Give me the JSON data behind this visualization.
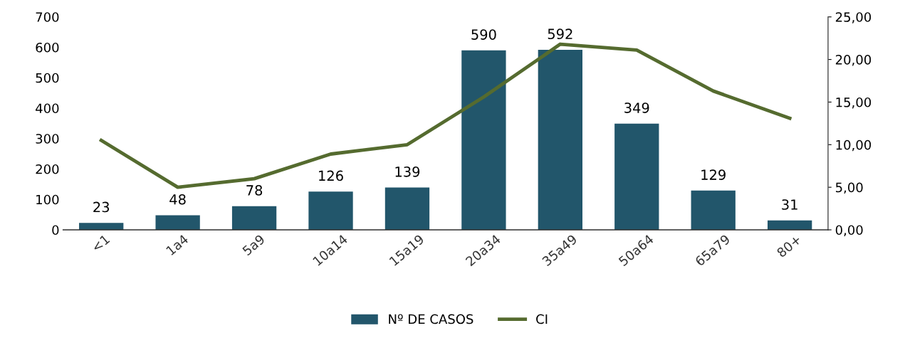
{
  "chart_data": {
    "type": "bar",
    "categories": [
      "<1",
      "1a4",
      "5a9",
      "10a14",
      "15a19",
      "20a34",
      "35a49",
      "50a64",
      "65a79",
      "80+"
    ],
    "series": [
      {
        "name": "Nº DE CASOS",
        "color": "#22566b",
        "values": [
          23,
          48,
          78,
          126,
          139,
          590,
          592,
          349,
          129,
          31
        ],
        "data_labels": true
      },
      {
        "name": "CI",
        "type": "line",
        "axis": "y2",
        "color": "#556b2f",
        "values": [
          10.5,
          5.0,
          6.0,
          8.9,
          10.0,
          15.6,
          21.8,
          21.1,
          16.3,
          13.1
        ]
      }
    ],
    "ylim": [
      0,
      700
    ],
    "yticks": [
      0,
      100,
      200,
      300,
      400,
      500,
      600,
      700
    ],
    "y2lim": [
      0,
      25
    ],
    "y2ticks": [
      {
        "value": 0,
        "label": "0,00"
      },
      {
        "value": 5,
        "label": "5,00"
      },
      {
        "value": 10,
        "label": "10,00"
      },
      {
        "value": 15,
        "label": "15,00"
      },
      {
        "value": 20,
        "label": "20,00"
      },
      {
        "value": 25,
        "label": "25,00"
      }
    ],
    "legend": "bottom",
    "grid": false,
    "marker": "none"
  }
}
